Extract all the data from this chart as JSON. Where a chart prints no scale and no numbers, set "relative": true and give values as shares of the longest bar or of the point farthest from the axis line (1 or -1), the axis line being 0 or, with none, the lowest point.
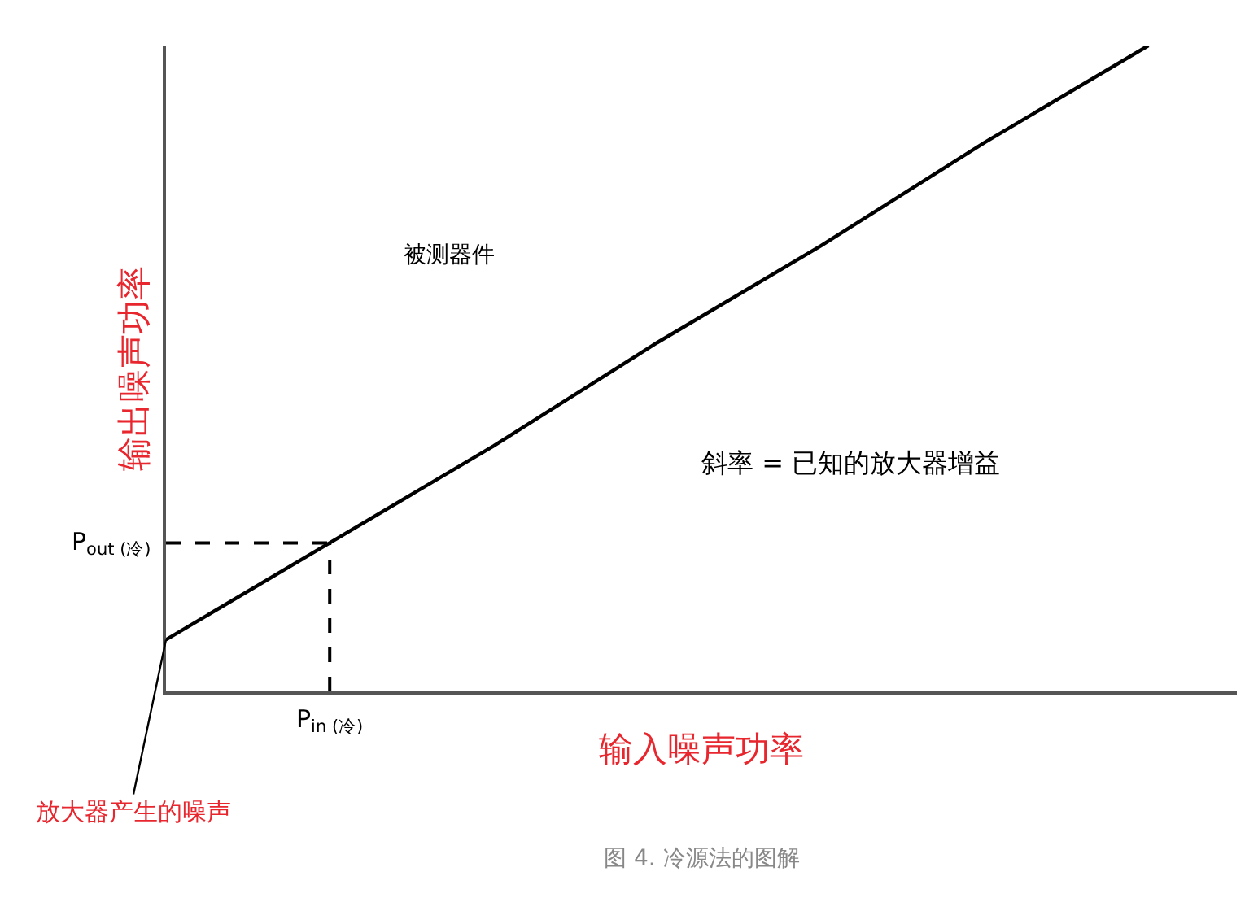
{
  "chart_data": {
    "type": "line",
    "relative": true,
    "categories": [
      null,
      null,
      null,
      null,
      null,
      null,
      null
    ],
    "series": [
      {
        "color": "#000000",
        "values": [
          0.08,
          0.23,
          0.38,
          0.54,
          0.69,
          0.85,
          1.0
        ]
      }
    ],
    "xlabel": "输入噪声功率",
    "ylabel": "输出噪声功率",
    "ref_lines": [
      {
        "axis": "y",
        "value": 0.23,
        "label": "P$_{out (冷)}$",
        "line_style": "dashed",
        "color": "#000000"
      }
    ],
    "annotations": [
      "被测器件",
      "斜率 = 已知的放大器增益",
      "放大器产生的噪声",
      "P$_{in (冷)}$",
      "图 4. 冷源法的图解"
    ],
    "marker": "none",
    "line_style": "solid"
  }
}
